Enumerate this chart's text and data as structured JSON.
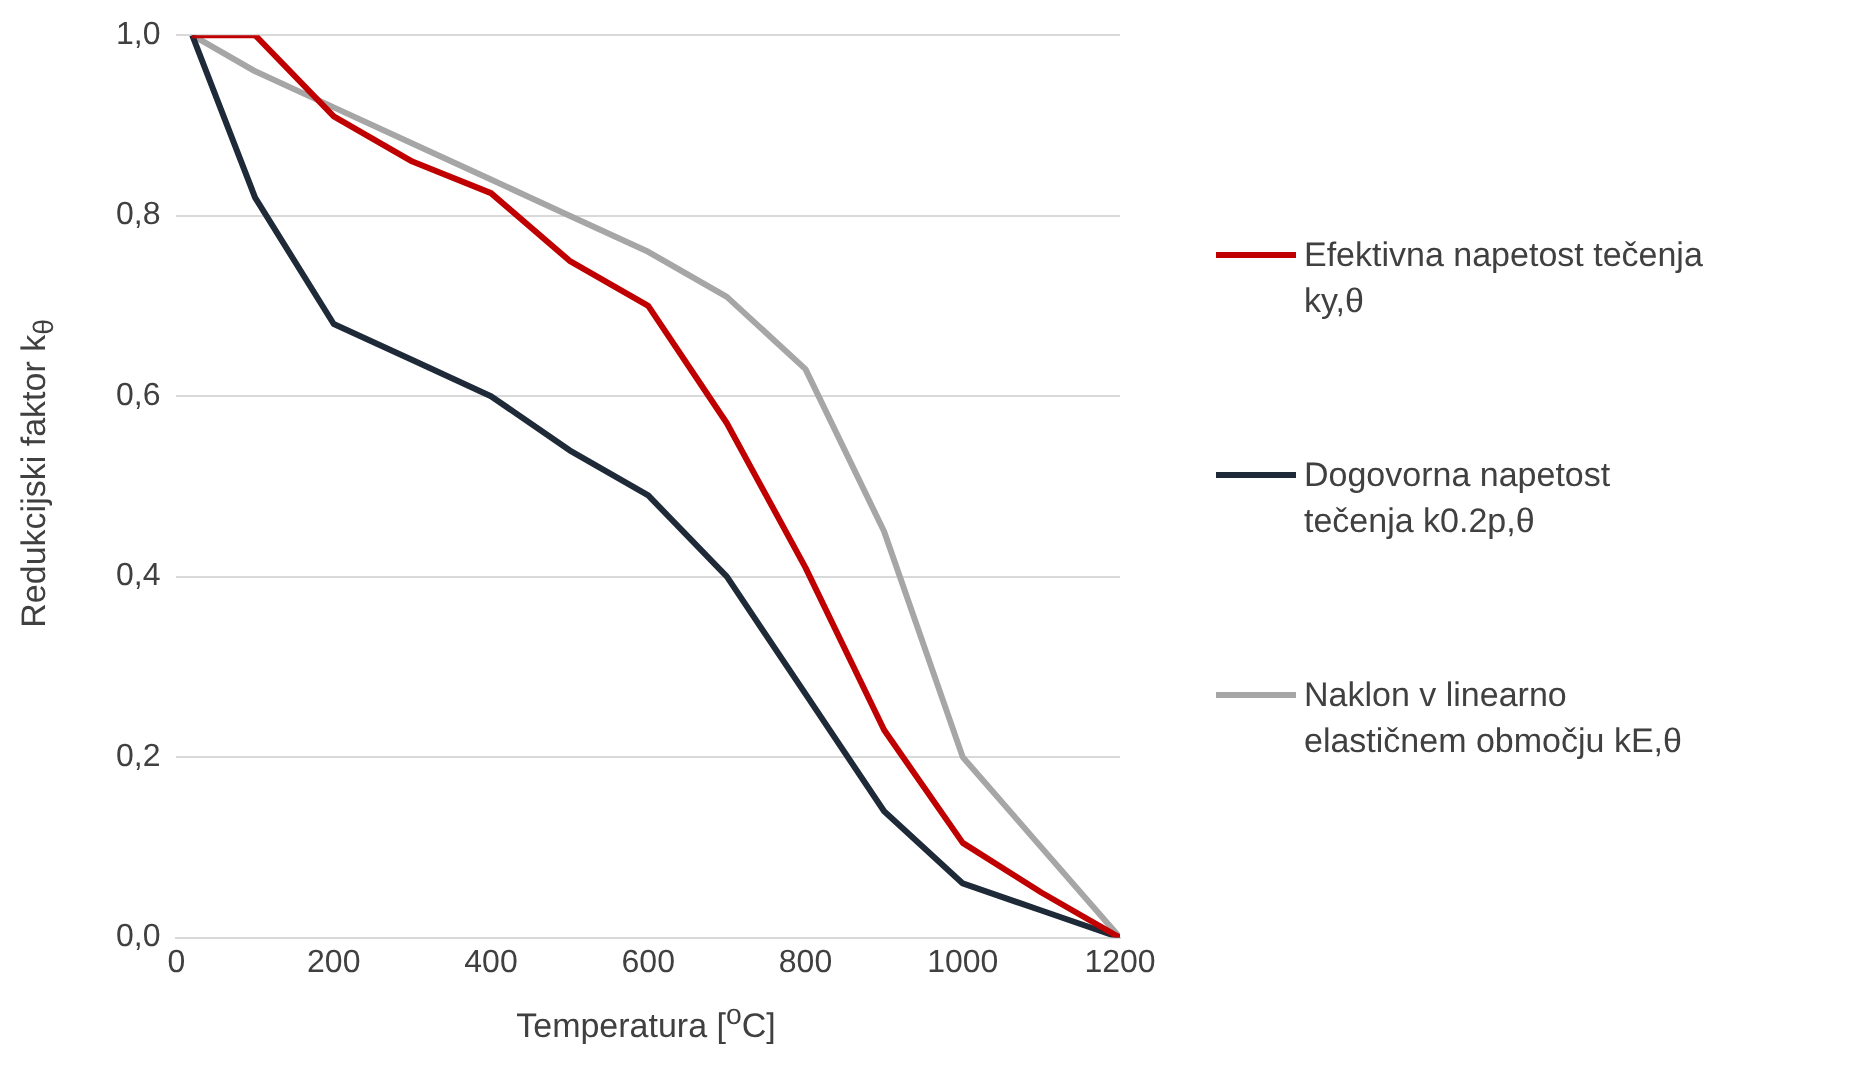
{
  "chart_data": {
    "type": "line",
    "xlabel": "Temperatura [$^{o}$C]",
    "ylabel": "Redukcijski faktor k$_{θ}$",
    "x": [
      20,
      100,
      200,
      300,
      400,
      500,
      600,
      700,
      800,
      900,
      1000,
      1100,
      1200
    ],
    "series": [
      {
        "name": "Efektivna napetost tečenja ky,θ",
        "color": "#c00000",
        "values": [
          1.0,
          1.0,
          0.91,
          0.86,
          0.825,
          0.75,
          0.7,
          0.57,
          0.41,
          0.23,
          0.105,
          0.05,
          0
        ]
      },
      {
        "name": "Dogovorna  napetost tečenja k0.2p,θ",
        "color": "#1f2a38",
        "values": [
          1.0,
          0.82,
          0.68,
          0.64,
          0.6,
          0.54,
          0.49,
          0.4,
          0.27,
          0.14,
          0.06,
          0.03,
          0
        ]
      },
      {
        "name": "Naklon v linearno elastičnem območju kE,θ",
        "color": "#a6a6a6",
        "values": [
          1.0,
          0.96,
          0.92,
          0.88,
          0.84,
          0.8,
          0.76,
          0.71,
          0.63,
          0.45,
          0.2,
          0.1,
          0
        ]
      }
    ],
    "xlim": [
      0,
      1200
    ],
    "xticks": [
      0,
      200,
      400,
      600,
      800,
      1000,
      1200
    ],
    "ylim": [
      0,
      1
    ],
    "yticks": [
      {
        "value": 0,
        "label": "0,0"
      },
      {
        "value": 0.2,
        "label": "0,2"
      },
      {
        "value": 0.4,
        "label": "0,4"
      },
      {
        "value": 0.6,
        "label": "0,6"
      },
      {
        "value": 0.8,
        "label": "0,8"
      },
      {
        "value": 1,
        "label": "1,0"
      }
    ],
    "grid": "y",
    "legend": "right",
    "marker": "none",
    "line_style": "solid"
  }
}
